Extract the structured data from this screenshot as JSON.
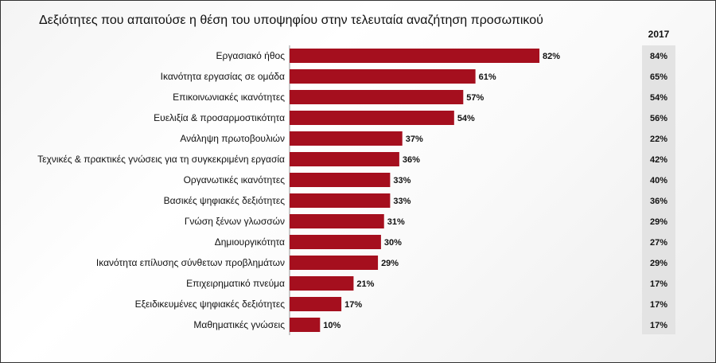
{
  "title": "Δεξιότητες που απαιτούσε η θέση του υποψηφίου στην τελευταία αναζήτηση προσωπικού",
  "comparison_year": "2017",
  "colors": {
    "bar": "#a50f1e",
    "comparison_band": "#e3e3e3"
  },
  "chart_data": {
    "type": "bar",
    "orientation": "horizontal",
    "title": "Δεξιότητες που απαιτούσε η θέση του υποψηφίου στην τελευταία αναζήτηση προσωπικού",
    "xlim": [
      0,
      100
    ],
    "grid": false,
    "categories": [
      "Εργασιακό ήθος",
      "Ικανότητα εργασίας σε ομάδα",
      "Επικοινωνιακές ικανότητες",
      "Ευελιξία & προσαρμοστικότητα",
      "Ανάληψη πρωτοβουλιών",
      "Τεχνικές & πρακτικές γνώσεις για τη συγκεκριμένη εργασία",
      "Οργανωτικές ικανότητες",
      "Βασικές ψηφιακές δεξιότητες",
      "Γνώση ξένων γλωσσών",
      "Δημιουργικότητα",
      "Ικανότητα επίλυσης σύνθετων προβλημάτων",
      "Επιχειρηματικό πνεύμα",
      "Εξειδικευμένες ψηφιακές δεξιότητες",
      "Μαθηματικές γνώσεις"
    ],
    "values": [
      82,
      61,
      57,
      54,
      37,
      36,
      33,
      33,
      31,
      30,
      29,
      21,
      17,
      10
    ],
    "value_labels": [
      "82%",
      "61%",
      "57%",
      "54%",
      "37%",
      "36%",
      "33%",
      "33%",
      "31%",
      "30%",
      "29%",
      "21%",
      "17%",
      "10%"
    ],
    "comparison_values": [
      84,
      65,
      54,
      56,
      22,
      42,
      40,
      36,
      29,
      27,
      29,
      17,
      17,
      17
    ],
    "comparison_labels": [
      "84%",
      "65%",
      "54%",
      "56%",
      "22%",
      "42%",
      "40%",
      "36%",
      "29%",
      "27%",
      "29%",
      "17%",
      "17%",
      "17%"
    ]
  }
}
